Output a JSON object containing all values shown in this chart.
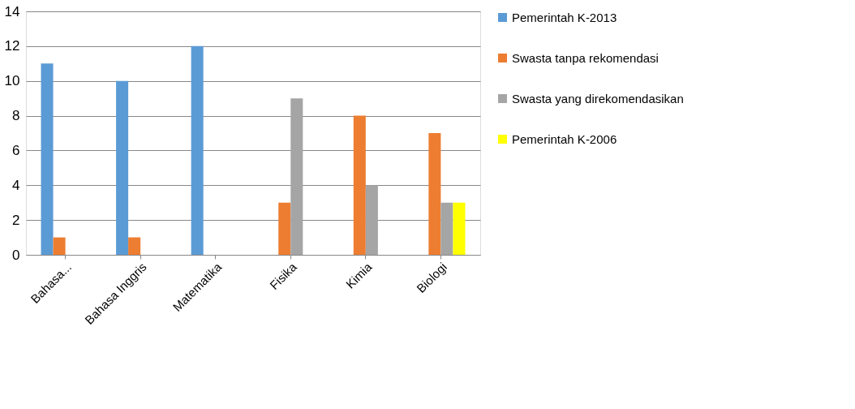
{
  "chart_data": {
    "type": "bar",
    "categories": [
      "Bahasa...",
      "Bahasa Inggris",
      "Matematika",
      "Fisika",
      "Kimia",
      "Biologi"
    ],
    "series": [
      {
        "name": "Pemerintah K-2013",
        "color": "#5b9bd5",
        "values": [
          11,
          10,
          12,
          0,
          0,
          0
        ]
      },
      {
        "name": "Swasta tanpa rekomendasi",
        "color": "#ed7d31",
        "values": [
          1,
          1,
          0,
          3,
          8,
          7
        ]
      },
      {
        "name": "Swasta yang direkomendasikan",
        "color": "#a5a5a5",
        "values": [
          0,
          0,
          0,
          9,
          4,
          3
        ]
      },
      {
        "name": "Pemerintah K-2006",
        "color": "#ffff00",
        "values": [
          0,
          0,
          0,
          0,
          0,
          3
        ]
      }
    ],
    "ylim": [
      0,
      14
    ],
    "yticks": [
      0,
      2,
      4,
      6,
      8,
      10,
      12,
      14
    ],
    "grid": "y",
    "legend": "right"
  }
}
